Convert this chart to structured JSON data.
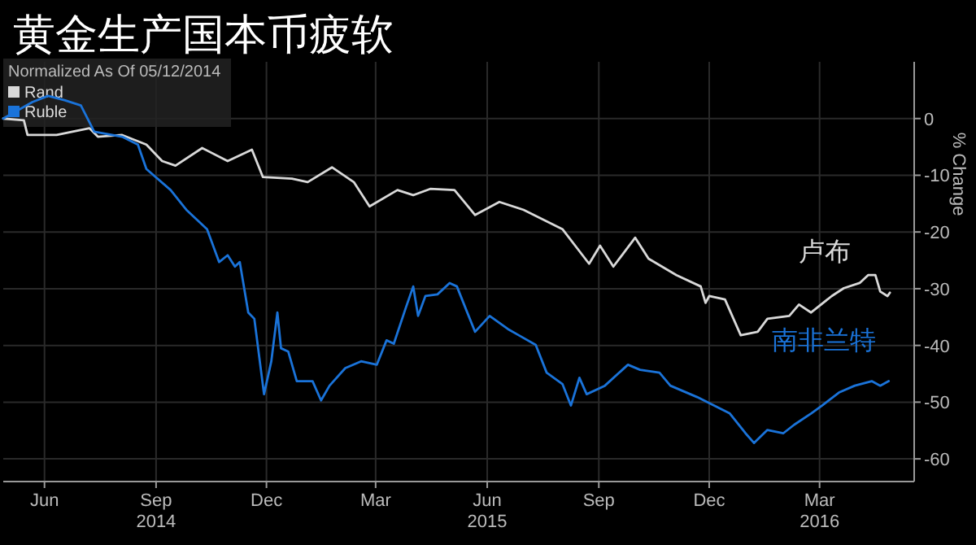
{
  "chart_data": {
    "type": "line",
    "title": "黄金生产国本币疲软",
    "legend_title": "Normalized As Of 05/12/2014",
    "ylabel": "% Change",
    "xlim": [
      "2014-05-12",
      "2016-06-01"
    ],
    "xticks": [
      {
        "value": "2014-06-15",
        "label": "Jun"
      },
      {
        "value": "2014-09-15",
        "label": "Sep\n2014"
      },
      {
        "value": "2014-12-15",
        "label": "Dec"
      },
      {
        "value": "2015-03-15",
        "label": "Mar"
      },
      {
        "value": "2015-06-15",
        "label": "Jun\n2015"
      },
      {
        "value": "2015-09-15",
        "label": "Sep"
      },
      {
        "value": "2015-12-15",
        "label": "Dec"
      },
      {
        "value": "2016-03-15",
        "label": "Mar\n2016"
      }
    ],
    "ylim": [
      -64,
      10
    ],
    "yticks": [
      0,
      -10,
      -20,
      -30,
      -40,
      -50,
      -60
    ],
    "grid": true,
    "legend": "top left",
    "series": [
      {
        "name": "Rand",
        "color": "#d9d9d9",
        "x": [
          "2014-05-12",
          "2014-05-29",
          "2014-06-01",
          "2014-06-25",
          "2014-07-22",
          "2014-07-29",
          "2014-08-18",
          "2014-09-07",
          "2014-09-20",
          "2014-10-01",
          "2014-10-23",
          "2014-11-13",
          "2014-12-03",
          "2014-12-12",
          "2015-01-05",
          "2015-01-18",
          "2015-02-07",
          "2015-02-25",
          "2015-03-10",
          "2015-04-02",
          "2015-04-15",
          "2015-04-29",
          "2015-05-19",
          "2015-06-05",
          "2015-06-25",
          "2015-07-15",
          "2015-08-16",
          "2015-09-07",
          "2015-09-16",
          "2015-09-27",
          "2015-10-15",
          "2015-10-26",
          "2015-11-18",
          "2015-12-08",
          "2015-12-12",
          "2015-12-15",
          "2015-12-28",
          "2016-01-10",
          "2016-01-24",
          "2016-02-01",
          "2016-02-19",
          "2016-02-27",
          "2016-03-08",
          "2016-03-25",
          "2016-04-04",
          "2016-04-17",
          "2016-04-24",
          "2016-04-30",
          "2016-05-04",
          "2016-05-10",
          "2016-05-12"
        ],
        "values": [
          0,
          -0.3,
          -2.9,
          -2.9,
          -1.7,
          -3.2,
          -2.9,
          -4.6,
          -7.5,
          -8.3,
          -5.2,
          -7.5,
          -5.5,
          -10.3,
          -10.6,
          -11.2,
          -8.6,
          -11.2,
          -15.5,
          -12.6,
          -13.5,
          -12.4,
          -12.6,
          -17,
          -14.7,
          -16.1,
          -19.5,
          -25.6,
          -22.4,
          -26.1,
          -21,
          -24.7,
          -27.6,
          -29.6,
          -32.5,
          -31.3,
          -31.9,
          -38.2,
          -37.6,
          -35.3,
          -34.8,
          -32.8,
          -34.2,
          -31.3,
          -29.9,
          -29,
          -27.6,
          -27.6,
          -30.5,
          -31.3,
          -30.7
        ]
      },
      {
        "name": "Ruble",
        "color": "#1a73d9",
        "x": [
          "2014-05-12",
          "2014-06-05",
          "2014-06-18",
          "2014-07-02",
          "2014-07-15",
          "2014-07-26",
          "2014-08-18",
          "2014-08-31",
          "2014-09-07",
          "2014-09-27",
          "2014-10-10",
          "2014-10-27",
          "2014-11-06",
          "2014-11-13",
          "2014-11-19",
          "2014-11-23",
          "2014-11-30",
          "2014-12-05",
          "2014-12-13",
          "2014-12-19",
          "2014-12-24",
          "2014-12-27",
          "2015-01-02",
          "2015-01-09",
          "2015-01-22",
          "2015-01-29",
          "2015-02-05",
          "2015-02-18",
          "2015-03-03",
          "2015-03-16",
          "2015-03-24",
          "2015-03-30",
          "2015-04-09",
          "2015-04-15",
          "2015-04-19",
          "2015-04-25",
          "2015-05-05",
          "2015-05-15",
          "2015-05-21",
          "2015-05-29",
          "2015-06-05",
          "2015-06-17",
          "2015-07-02",
          "2015-07-11",
          "2015-07-25",
          "2015-08-03",
          "2015-08-16",
          "2015-08-23",
          "2015-08-30",
          "2015-09-05",
          "2015-09-20",
          "2015-10-09",
          "2015-10-19",
          "2015-11-04",
          "2015-11-13",
          "2015-12-05",
          "2015-12-19",
          "2016-01-01",
          "2016-01-14",
          "2016-01-21",
          "2016-02-01",
          "2016-02-14",
          "2016-02-23",
          "2016-03-08",
          "2016-03-17",
          "2016-03-31",
          "2016-04-13",
          "2016-04-27",
          "2016-05-04",
          "2016-05-11"
        ],
        "values": [
          0,
          2.9,
          4,
          3.2,
          2.3,
          -2.3,
          -3.2,
          -4.6,
          -8.9,
          -12.6,
          -16.1,
          -19.5,
          -25.3,
          -24.1,
          -26.1,
          -25.3,
          -34.2,
          -35.3,
          -48.6,
          -42.8,
          -34.2,
          -40.5,
          -41.1,
          -46.3,
          -46.3,
          -49.7,
          -47.1,
          -44,
          -42.8,
          -43.4,
          -39.1,
          -39.7,
          -33.3,
          -29.6,
          -34.8,
          -31.3,
          -31,
          -29,
          -29.6,
          -33.9,
          -37.6,
          -34.8,
          -37.1,
          -38.2,
          -39.9,
          -44.8,
          -46.8,
          -50.6,
          -45.7,
          -48.6,
          -47.1,
          -43.4,
          -44.3,
          -44.8,
          -47.1,
          -49.1,
          -50.6,
          -52,
          -55.5,
          -57.2,
          -54.9,
          -55.5,
          -54,
          -52,
          -50.6,
          -48.3,
          -47.1,
          -46.3,
          -47.1,
          -46.3
        ]
      }
    ],
    "annotations": [
      "卢布",
      "南非兰特"
    ]
  }
}
